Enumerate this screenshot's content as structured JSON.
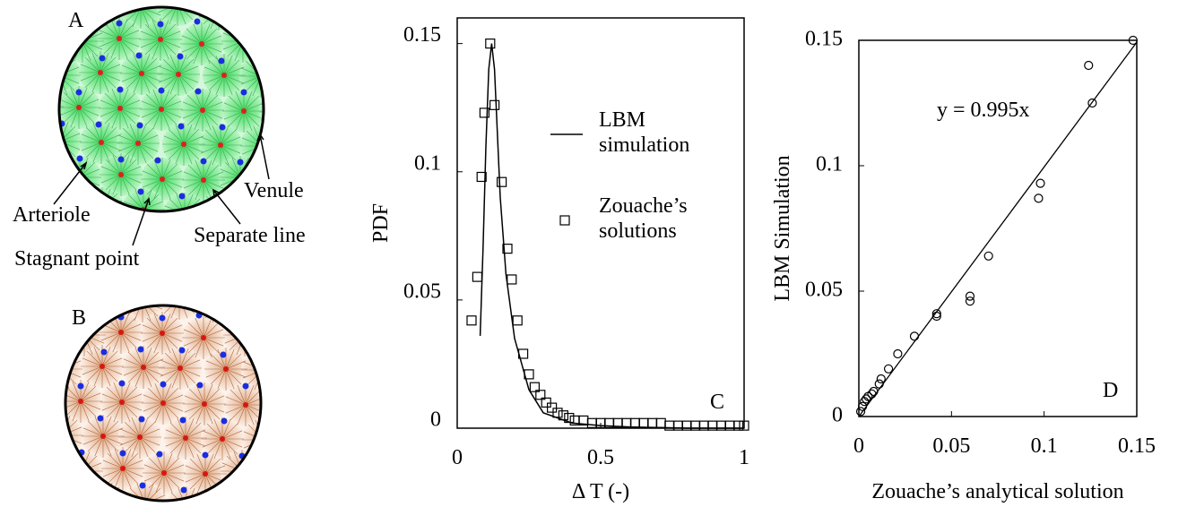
{
  "illustrations": [
    {
      "label": "A",
      "annotations": [
        "Arteriole",
        "Stagnant point",
        "Separate line",
        "Venule"
      ]
    },
    {
      "label": "B"
    }
  ],
  "chart_data": [
    {
      "type": "line",
      "panel": "C",
      "xlabel": "Δ T (-)",
      "ylabel": "PDF",
      "xlim": [
        0,
        1
      ],
      "ylim": [
        0,
        0.16
      ],
      "xticks": [
        0,
        0.5,
        1
      ],
      "yticks": [
        0,
        0.05,
        0.1,
        0.15
      ],
      "series": [
        {
          "name": "LBM simulation",
          "color": "#000000",
          "marker": "line",
          "x": [
            0.08,
            0.09,
            0.1,
            0.11,
            0.12,
            0.13,
            0.14,
            0.15,
            0.17,
            0.2,
            0.25,
            0.3,
            0.4,
            0.5,
            0.6,
            0.8,
            1.0
          ],
          "values": [
            0.036,
            0.07,
            0.11,
            0.14,
            0.15,
            0.14,
            0.115,
            0.09,
            0.06,
            0.035,
            0.015,
            0.006,
            0.002,
            0.001,
            0.0005,
            0,
            0
          ]
        },
        {
          "name": "Zouache’s solutions",
          "color": "#000000",
          "marker": "square",
          "x": [
            0.05,
            0.07,
            0.085,
            0.095,
            0.115,
            0.13,
            0.155,
            0.175,
            0.19,
            0.21,
            0.23,
            0.25,
            0.27,
            0.29,
            0.31,
            0.33,
            0.35,
            0.37,
            0.39,
            0.41,
            0.44,
            0.47,
            0.5,
            0.53,
            0.56,
            0.59,
            0.62,
            0.65,
            0.68,
            0.71,
            0.74,
            0.77,
            0.8,
            0.83,
            0.86,
            0.89,
            0.92,
            0.95,
            0.98,
            1.0
          ],
          "values": [
            0.042,
            0.059,
            0.098,
            0.123,
            0.15,
            0.126,
            0.096,
            0.07,
            0.058,
            0.042,
            0.029,
            0.021,
            0.016,
            0.013,
            0.01,
            0.008,
            0.006,
            0.005,
            0.004,
            0.003,
            0.003,
            0.002,
            0.002,
            0.002,
            0.002,
            0.002,
            0.002,
            0.002,
            0.002,
            0.002,
            0.001,
            0.001,
            0.001,
            0.001,
            0.001,
            0.001,
            0.001,
            0.001,
            0.001,
            0.001
          ]
        }
      ]
    },
    {
      "type": "scatter",
      "panel": "D",
      "xlabel": "Zouache’s analytical solution",
      "ylabel": "LBM Simulation",
      "xlim": [
        0,
        0.15
      ],
      "ylim": [
        0,
        0.15
      ],
      "xticks": [
        0,
        0.05,
        0.1,
        0.15
      ],
      "yticks": [
        0,
        0.05,
        0.1,
        0.15
      ],
      "fit": {
        "label": "y = 0.995x",
        "slope": 0.995
      },
      "series": [
        {
          "color": "#000000",
          "marker": "circle",
          "x": [
            0.148,
            0.124,
            0.126,
            0.098,
            0.097,
            0.07,
            0.06,
            0.06,
            0.042,
            0.042,
            0.03,
            0.021,
            0.016,
            0.012,
            0.011,
            0.008,
            0.007,
            0.005,
            0.004,
            0.003,
            0.002,
            0.001
          ],
          "values": [
            0.15,
            0.14,
            0.125,
            0.093,
            0.087,
            0.064,
            0.048,
            0.046,
            0.041,
            0.04,
            0.032,
            0.025,
            0.019,
            0.015,
            0.013,
            0.01,
            0.009,
            0.008,
            0.007,
            0.006,
            0.004,
            0.002
          ]
        }
      ]
    }
  ]
}
